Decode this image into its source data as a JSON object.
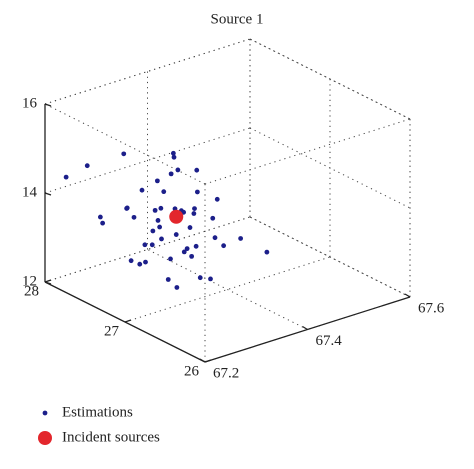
{
  "chart_data": {
    "type": "scatter3d",
    "title": "Source 1",
    "xlim": [
      67.2,
      67.6
    ],
    "xticks": [
      67.2,
      67.4,
      67.6
    ],
    "ylim": [
      26,
      28
    ],
    "yticks": [
      26,
      27,
      28
    ],
    "zlim": [
      12,
      16
    ],
    "zticks": [
      12,
      14,
      16
    ],
    "grid": true,
    "legend": "bottom-left",
    "series": [
      {
        "name": "Estimations",
        "color": "#1c1f8a",
        "size": 2.4,
        "x": [
          67.3,
          67.28,
          67.32,
          67.27,
          67.33,
          67.29,
          67.31,
          67.26,
          67.35,
          67.24,
          67.3,
          67.28,
          67.34,
          67.25,
          67.32,
          67.22,
          67.36,
          67.29,
          67.27,
          67.31,
          67.23,
          67.38,
          67.26,
          67.33,
          67.3,
          67.28,
          67.35,
          67.24,
          67.31,
          67.29,
          67.22,
          67.37,
          67.33,
          67.27,
          67.3,
          67.25,
          67.34,
          67.28,
          67.32,
          67.26,
          67.41,
          67.43,
          67.21,
          67.3,
          67.29,
          67.31,
          67.27,
          67.33,
          67.28,
          67.36
        ],
        "y": [
          27.0,
          27.1,
          26.9,
          27.2,
          27.0,
          26.8,
          27.3,
          26.9,
          27.1,
          27.0,
          26.7,
          27.4,
          26.8,
          27.3,
          27.2,
          27.1,
          26.9,
          27.0,
          26.8,
          27.1,
          27.5,
          27.0,
          27.2,
          26.6,
          27.3,
          26.9,
          27.3,
          26.8,
          26.8,
          27.5,
          27.6,
          27.2,
          27.4,
          27.0,
          27.1,
          27.6,
          27.0,
          26.7,
          26.7,
          27.4,
          26.9,
          26.7,
          27.8,
          26.9,
          27.2,
          27.0,
          27.1,
          27.1,
          27.3,
          27.4
        ],
        "z": [
          13.6,
          13.9,
          14.2,
          13.3,
          13.0,
          13.5,
          14.5,
          14.8,
          13.8,
          13.2,
          12.9,
          13.7,
          14.0,
          14.1,
          12.8,
          14.4,
          13.4,
          15.0,
          12.7,
          15.3,
          13.8,
          14.1,
          12.9,
          13.6,
          13.1,
          15.5,
          14.6,
          13.9,
          14.7,
          12.6,
          14.9,
          12.9,
          13.3,
          14.3,
          12.5,
          13.5,
          14.9,
          14.1,
          12.8,
          15.2,
          13.2,
          13.0,
          14.5,
          13.3,
          14.0,
          14.1,
          13.7,
          13.9,
          14.4,
          13.6
        ]
      },
      {
        "name": "Incident sources",
        "color": "#e3262c",
        "size": 7,
        "x": [
          67.3
        ],
        "y": [
          27.0
        ],
        "z": [
          14.0
        ]
      }
    ]
  }
}
